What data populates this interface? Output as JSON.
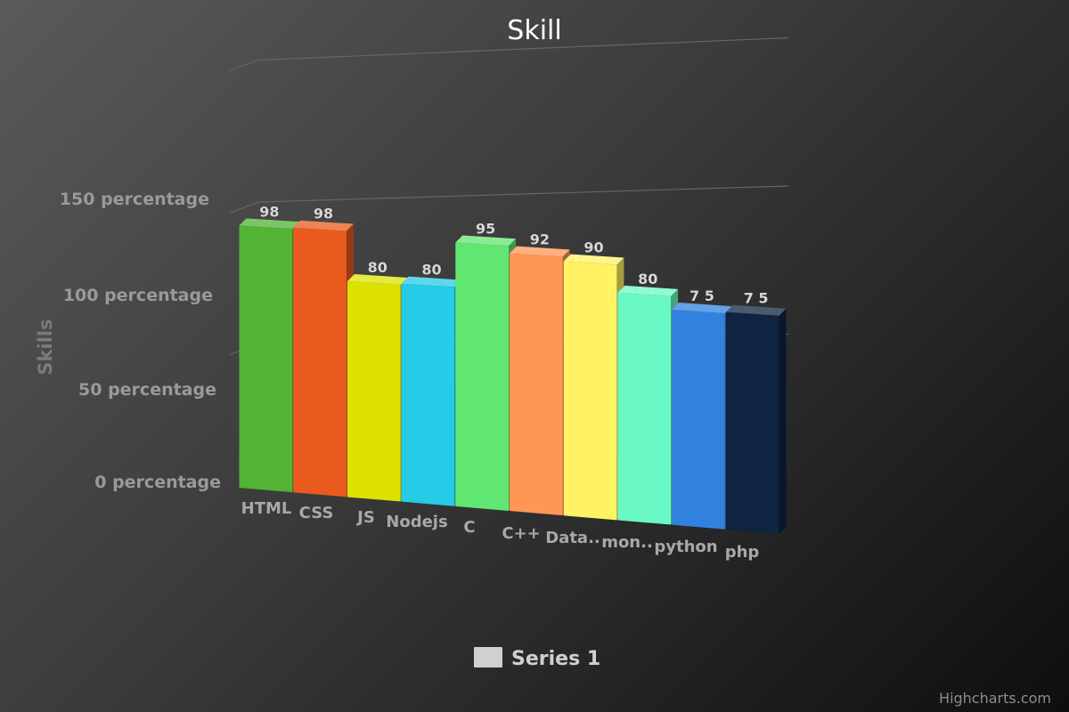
{
  "chart_data": {
    "type": "bar",
    "title": "Skill",
    "ylabel": "Skills",
    "ylim": [
      0,
      150
    ],
    "ytick_labels": [
      "0 percentage",
      "50 percentage",
      "100 percentage",
      "150 percentage"
    ],
    "ytick_values": [
      0,
      50,
      100,
      150
    ],
    "categories": [
      "HTML",
      "CSS",
      "JS",
      "Nodejs",
      "C",
      "C++",
      "Data..",
      "mon..",
      "python",
      "php"
    ],
    "series": [
      {
        "name": "Series 1",
        "values": [
          98,
          98,
          80,
          80,
          95,
          92,
          90,
          80,
          75,
          75
        ],
        "colors": [
          "#52b334",
          "#ea5a1e",
          "#dde102",
          "#25cbe7",
          "#62e672",
          "#ff9655",
          "#fff263",
          "#6af9c4",
          "#3182de",
          "#0e2440"
        ]
      }
    ],
    "data_label_texts": [
      "98",
      "98",
      "80",
      "80",
      "95",
      "92",
      "90",
      "80",
      "7 5",
      "7 5"
    ],
    "legend": {
      "position": "bottom-center",
      "swatch_color": "#d0d0d0"
    },
    "grid": true
  },
  "credits": "Highcharts.com"
}
